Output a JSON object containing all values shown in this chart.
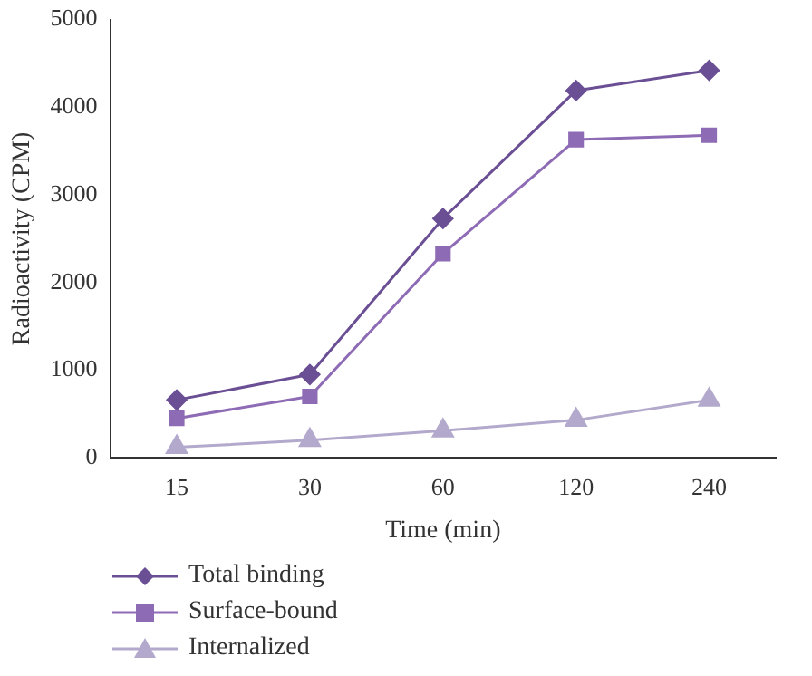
{
  "chart_data": {
    "type": "line",
    "xlabel": "Time (min)",
    "ylabel": "Radioactivity (CPM)",
    "categories": [
      "15",
      "30",
      "60",
      "120",
      "240"
    ],
    "series": [
      {
        "name": "Total binding",
        "color": "#6b4f95",
        "marker": "diamond",
        "values": [
          660,
          950,
          2730,
          4190,
          4420
        ]
      },
      {
        "name": "Surface-bound",
        "color": "#8e6bb5",
        "marker": "square",
        "values": [
          450,
          700,
          2330,
          3630,
          3680
        ]
      },
      {
        "name": "Internalized",
        "color": "#b3a9cc",
        "marker": "triangle",
        "values": [
          120,
          200,
          310,
          430,
          660
        ]
      }
    ],
    "ylim": [
      0,
      5000
    ],
    "yticks": [
      0,
      1000,
      2000,
      3000,
      4000,
      5000
    ],
    "grid": false,
    "legend": "bottom left",
    "line_style": "solid"
  }
}
